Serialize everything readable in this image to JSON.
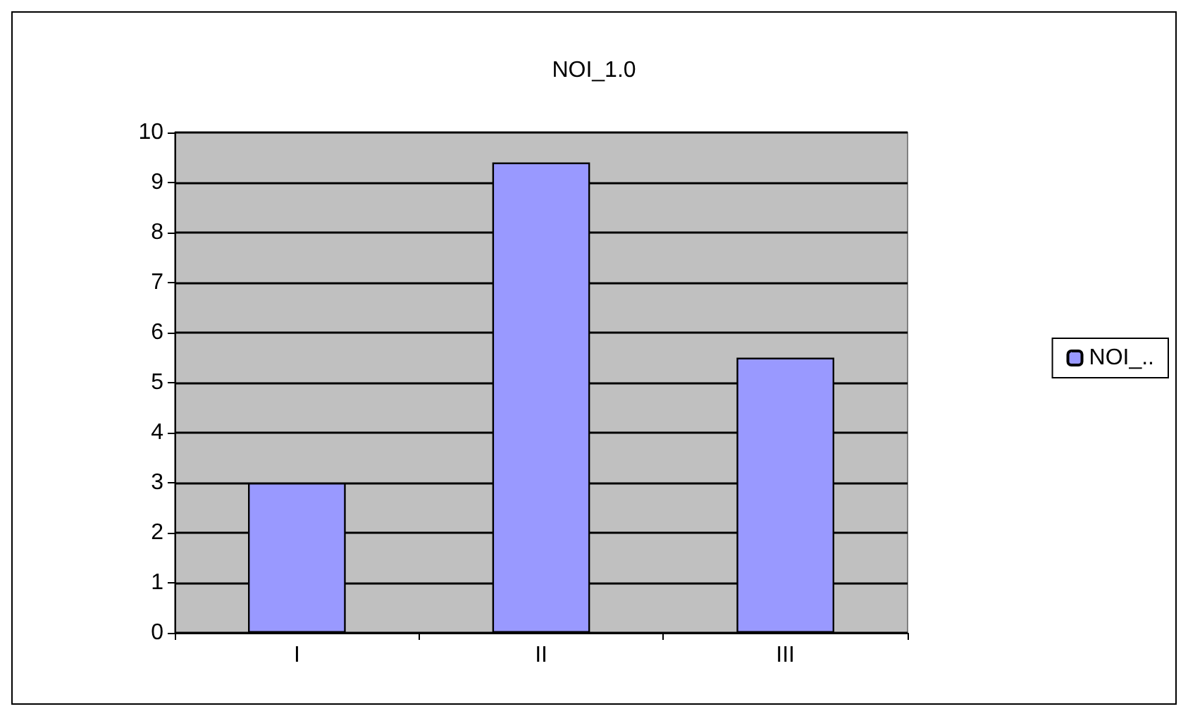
{
  "chart_data": {
    "type": "bar",
    "title": "NOI_1.0",
    "categories": [
      "I",
      "II",
      "III"
    ],
    "series": [
      {
        "name": "NOI_..",
        "color": "#9999ff",
        "values": [
          3,
          9.4,
          5.5
        ]
      }
    ],
    "ylim": [
      0,
      10
    ],
    "yticks": [
      0,
      1,
      2,
      3,
      4,
      5,
      6,
      7,
      8,
      9,
      10
    ],
    "grid": "y",
    "legend": "right"
  }
}
